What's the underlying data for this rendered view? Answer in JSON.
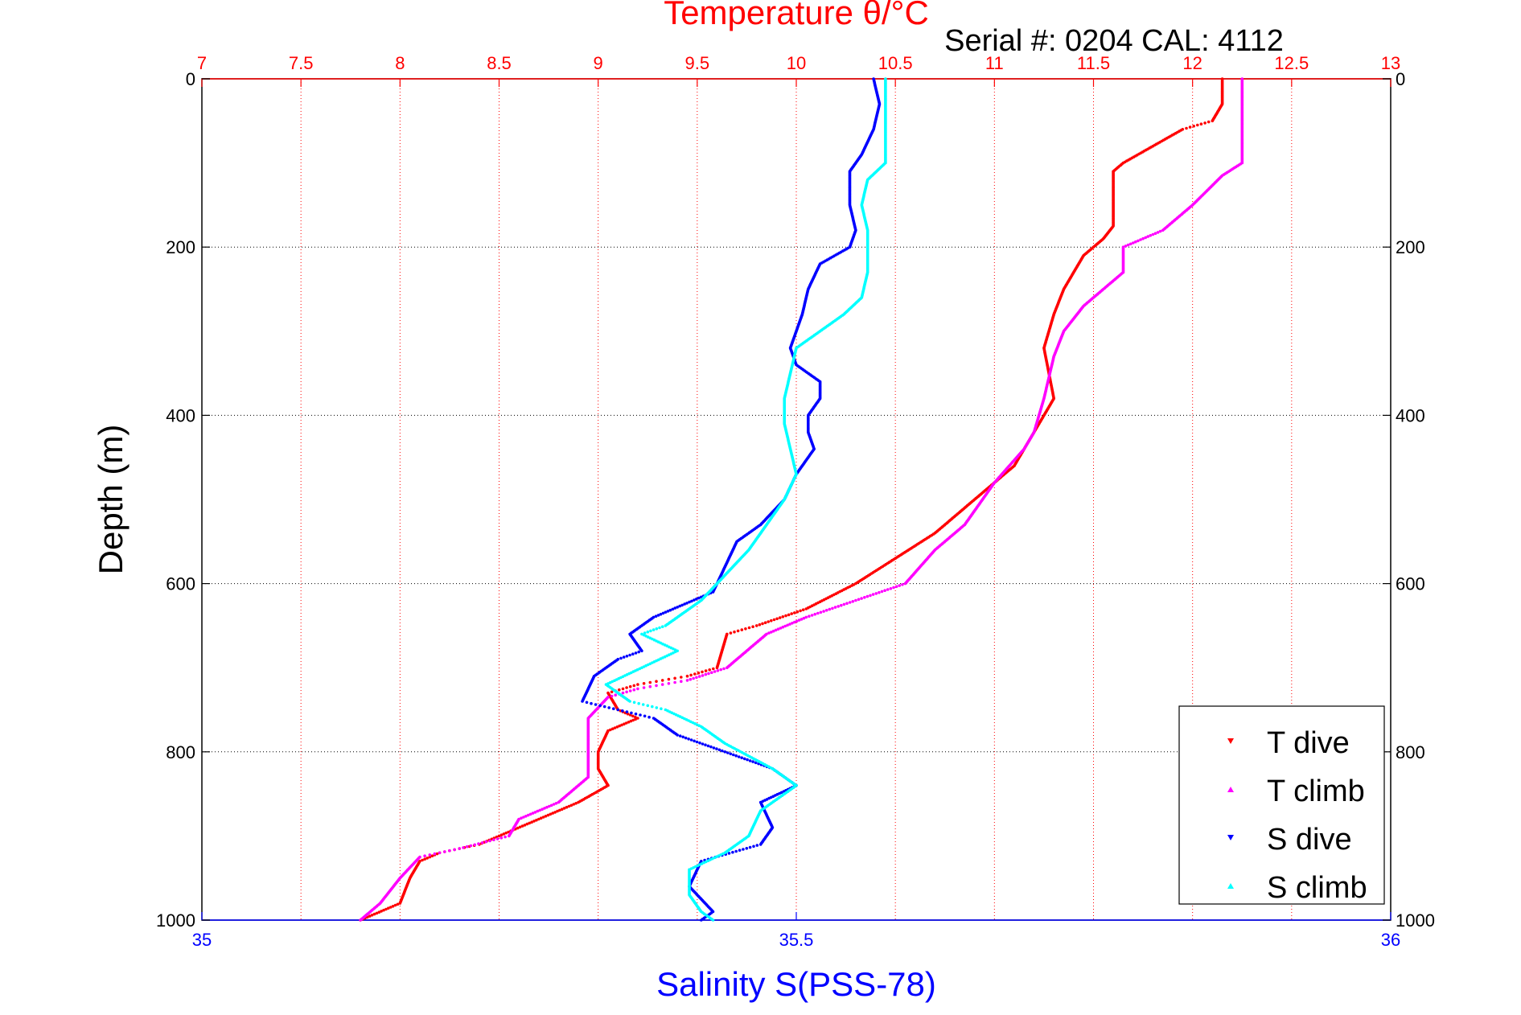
{
  "chart_data": {
    "type": "scatter",
    "title": "Temperature θ/°C",
    "subtitle": "Serial #: 0204  CAL: 4112",
    "ylabel": "Depth (m)",
    "xlabel_bottom": "Salinity S(PSS-78)",
    "y_reversed": true,
    "ylim": [
      0,
      1000
    ],
    "y_ticks": [
      "0",
      "200",
      "400",
      "600",
      "800",
      "1000"
    ],
    "x_top": {
      "label": "Temperature θ/°C",
      "range": [
        7,
        13
      ],
      "ticks": [
        "7",
        "7.5",
        "8",
        "8.5",
        "9",
        "9.5",
        "10",
        "10.5",
        "11",
        "11.5",
        "12",
        "12.5",
        "13"
      ],
      "color": "#ff0000"
    },
    "x_bottom": {
      "label": "Salinity S(PSS-78)",
      "range": [
        35,
        36
      ],
      "ticks": [
        "35",
        "35.5",
        "36"
      ],
      "color": "#0000ff"
    },
    "grid": true,
    "legend_position": "bottom-right",
    "series": [
      {
        "name": "T dive",
        "axis": "top",
        "color": "#ff0000",
        "marker": "triangle-down",
        "points": [
          [
            12.15,
            0
          ],
          [
            12.15,
            30
          ],
          [
            12.1,
            50
          ],
          [
            11.95,
            60
          ],
          [
            11.8,
            80
          ],
          [
            11.65,
            100
          ],
          [
            11.6,
            110
          ],
          [
            11.6,
            150
          ],
          [
            11.6,
            175
          ],
          [
            11.55,
            190
          ],
          [
            11.45,
            210
          ],
          [
            11.35,
            250
          ],
          [
            11.3,
            280
          ],
          [
            11.25,
            320
          ],
          [
            11.3,
            380
          ],
          [
            11.2,
            420
          ],
          [
            11.1,
            460
          ],
          [
            10.9,
            500
          ],
          [
            10.7,
            540
          ],
          [
            10.5,
            570
          ],
          [
            10.3,
            600
          ],
          [
            10.05,
            630
          ],
          [
            9.8,
            650
          ],
          [
            9.65,
            660
          ],
          [
            9.6,
            700
          ],
          [
            9.45,
            710
          ],
          [
            9.2,
            720
          ],
          [
            9.05,
            730
          ],
          [
            9.1,
            750
          ],
          [
            9.2,
            760
          ],
          [
            9.05,
            775
          ],
          [
            9.0,
            800
          ],
          [
            9.0,
            820
          ],
          [
            9.05,
            840
          ],
          [
            8.9,
            860
          ],
          [
            8.7,
            880
          ],
          [
            8.5,
            900
          ],
          [
            8.4,
            910
          ],
          [
            8.2,
            920
          ],
          [
            8.1,
            930
          ],
          [
            8.05,
            950
          ],
          [
            8.0,
            980
          ],
          [
            7.8,
            1000
          ]
        ]
      },
      {
        "name": "T climb",
        "axis": "top",
        "color": "#ff00ff",
        "marker": "triangle-up",
        "points": [
          [
            12.25,
            0
          ],
          [
            12.25,
            30
          ],
          [
            12.25,
            100
          ],
          [
            12.15,
            115
          ],
          [
            12.0,
            150
          ],
          [
            11.85,
            180
          ],
          [
            11.75,
            190
          ],
          [
            11.65,
            200
          ],
          [
            11.65,
            230
          ],
          [
            11.55,
            250
          ],
          [
            11.45,
            270
          ],
          [
            11.35,
            300
          ],
          [
            11.3,
            330
          ],
          [
            11.25,
            380
          ],
          [
            11.2,
            420
          ],
          [
            11.15,
            440
          ],
          [
            11.0,
            480
          ],
          [
            10.85,
            530
          ],
          [
            10.7,
            560
          ],
          [
            10.55,
            600
          ],
          [
            10.3,
            620
          ],
          [
            10.05,
            640
          ],
          [
            9.85,
            660
          ],
          [
            9.65,
            700
          ],
          [
            9.45,
            715
          ],
          [
            9.2,
            725
          ],
          [
            9.05,
            735
          ],
          [
            8.95,
            760
          ],
          [
            8.95,
            790
          ],
          [
            8.95,
            810
          ],
          [
            8.95,
            830
          ],
          [
            8.8,
            860
          ],
          [
            8.6,
            880
          ],
          [
            8.55,
            900
          ],
          [
            8.3,
            915
          ],
          [
            8.1,
            925
          ],
          [
            8.0,
            950
          ],
          [
            7.9,
            980
          ],
          [
            7.8,
            1000
          ]
        ]
      },
      {
        "name": "S dive",
        "axis": "bottom",
        "color": "#0000ff",
        "marker": "triangle-down",
        "points": [
          [
            35.565,
            0
          ],
          [
            35.57,
            30
          ],
          [
            35.565,
            60
          ],
          [
            35.555,
            90
          ],
          [
            35.545,
            110
          ],
          [
            35.545,
            150
          ],
          [
            35.55,
            180
          ],
          [
            35.545,
            200
          ],
          [
            35.52,
            220
          ],
          [
            35.51,
            250
          ],
          [
            35.505,
            280
          ],
          [
            35.5,
            300
          ],
          [
            35.495,
            320
          ],
          [
            35.5,
            340
          ],
          [
            35.52,
            360
          ],
          [
            35.52,
            380
          ],
          [
            35.51,
            400
          ],
          [
            35.51,
            420
          ],
          [
            35.515,
            440
          ],
          [
            35.5,
            470
          ],
          [
            35.49,
            500
          ],
          [
            35.47,
            530
          ],
          [
            35.45,
            550
          ],
          [
            35.44,
            580
          ],
          [
            35.43,
            610
          ],
          [
            35.38,
            640
          ],
          [
            35.36,
            660
          ],
          [
            35.37,
            680
          ],
          [
            35.35,
            690
          ],
          [
            35.33,
            710
          ],
          [
            35.32,
            740
          ],
          [
            35.35,
            750
          ],
          [
            35.38,
            760
          ],
          [
            35.4,
            780
          ],
          [
            35.44,
            800
          ],
          [
            35.48,
            820
          ],
          [
            35.5,
            840
          ],
          [
            35.47,
            860
          ],
          [
            35.48,
            890
          ],
          [
            35.47,
            910
          ],
          [
            35.42,
            930
          ],
          [
            35.41,
            960
          ],
          [
            35.43,
            990
          ],
          [
            35.42,
            1000
          ]
        ]
      },
      {
        "name": "S climb",
        "axis": "bottom",
        "color": "#00ffff",
        "marker": "triangle-up",
        "points": [
          [
            35.575,
            0
          ],
          [
            35.575,
            40
          ],
          [
            35.575,
            100
          ],
          [
            35.56,
            120
          ],
          [
            35.555,
            150
          ],
          [
            35.56,
            180
          ],
          [
            35.56,
            200
          ],
          [
            35.56,
            230
          ],
          [
            35.555,
            260
          ],
          [
            35.54,
            280
          ],
          [
            35.52,
            300
          ],
          [
            35.5,
            320
          ],
          [
            35.495,
            350
          ],
          [
            35.49,
            380
          ],
          [
            35.49,
            410
          ],
          [
            35.495,
            440
          ],
          [
            35.5,
            470
          ],
          [
            35.49,
            500
          ],
          [
            35.475,
            530
          ],
          [
            35.46,
            560
          ],
          [
            35.44,
            590
          ],
          [
            35.42,
            620
          ],
          [
            35.39,
            650
          ],
          [
            35.37,
            660
          ],
          [
            35.4,
            680
          ],
          [
            35.37,
            700
          ],
          [
            35.34,
            720
          ],
          [
            35.36,
            740
          ],
          [
            35.39,
            750
          ],
          [
            35.42,
            770
          ],
          [
            35.44,
            790
          ],
          [
            35.48,
            820
          ],
          [
            35.5,
            840
          ],
          [
            35.47,
            870
          ],
          [
            35.46,
            900
          ],
          [
            35.44,
            920
          ],
          [
            35.41,
            940
          ],
          [
            35.41,
            970
          ],
          [
            35.42,
            990
          ],
          [
            35.43,
            1000
          ]
        ]
      }
    ],
    "legend": [
      "T dive",
      "T climb",
      "S dive",
      "S climb"
    ]
  }
}
